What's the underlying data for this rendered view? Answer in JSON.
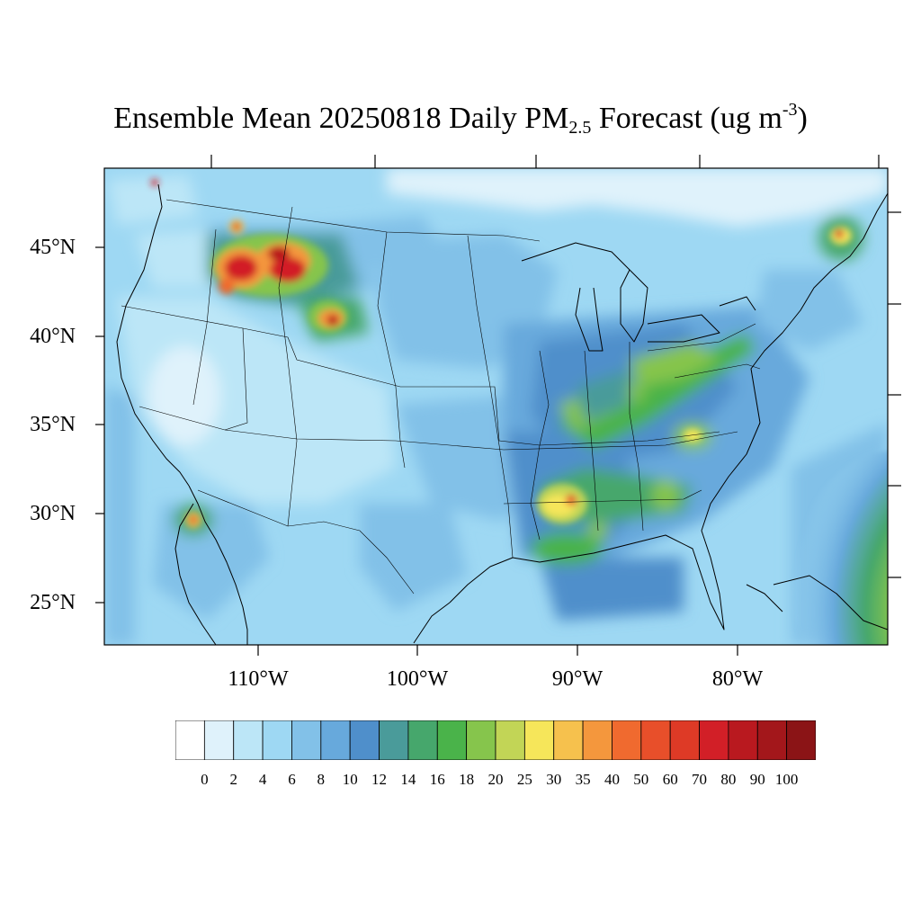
{
  "title": {
    "prefix": "Ensemble Mean 20250818 Daily PM",
    "subscript": "2.5",
    "middle": " Forecast (ug m",
    "superscript": "-3",
    "suffix": ")"
  },
  "map": {
    "lat_labels": [
      "45°N",
      "40°N",
      "35°N",
      "30°N",
      "25°N"
    ],
    "lon_labels": [
      "110°W",
      "100°W",
      "90°W",
      "80°W"
    ],
    "features": [
      "smoke-plume-montana-idaho",
      "smoke-plume-wyoming",
      "smoke-plume-nova-scotia",
      "smoke-plume-baja",
      "tropical-system-atlantic"
    ]
  },
  "legend": {
    "labels": [
      "0",
      "2",
      "4",
      "6",
      "8",
      "10",
      "12",
      "14",
      "16",
      "18",
      "20",
      "25",
      "30",
      "35",
      "40",
      "50",
      "60",
      "70",
      "80",
      "90",
      "100"
    ],
    "colors": [
      "#ffffff",
      "#dff2fb",
      "#bce6f7",
      "#9ed8f3",
      "#82c1e8",
      "#67a9dc",
      "#4f8fcb",
      "#4a9b9a",
      "#46a76c",
      "#4ab34a",
      "#86c54c",
      "#c2d556",
      "#f6e65a",
      "#f6c14d",
      "#f4973d",
      "#f06a2f",
      "#e84f2a",
      "#de3a26",
      "#d21f27",
      "#b9191f",
      "#a3171b",
      "#8b1416"
    ]
  }
}
